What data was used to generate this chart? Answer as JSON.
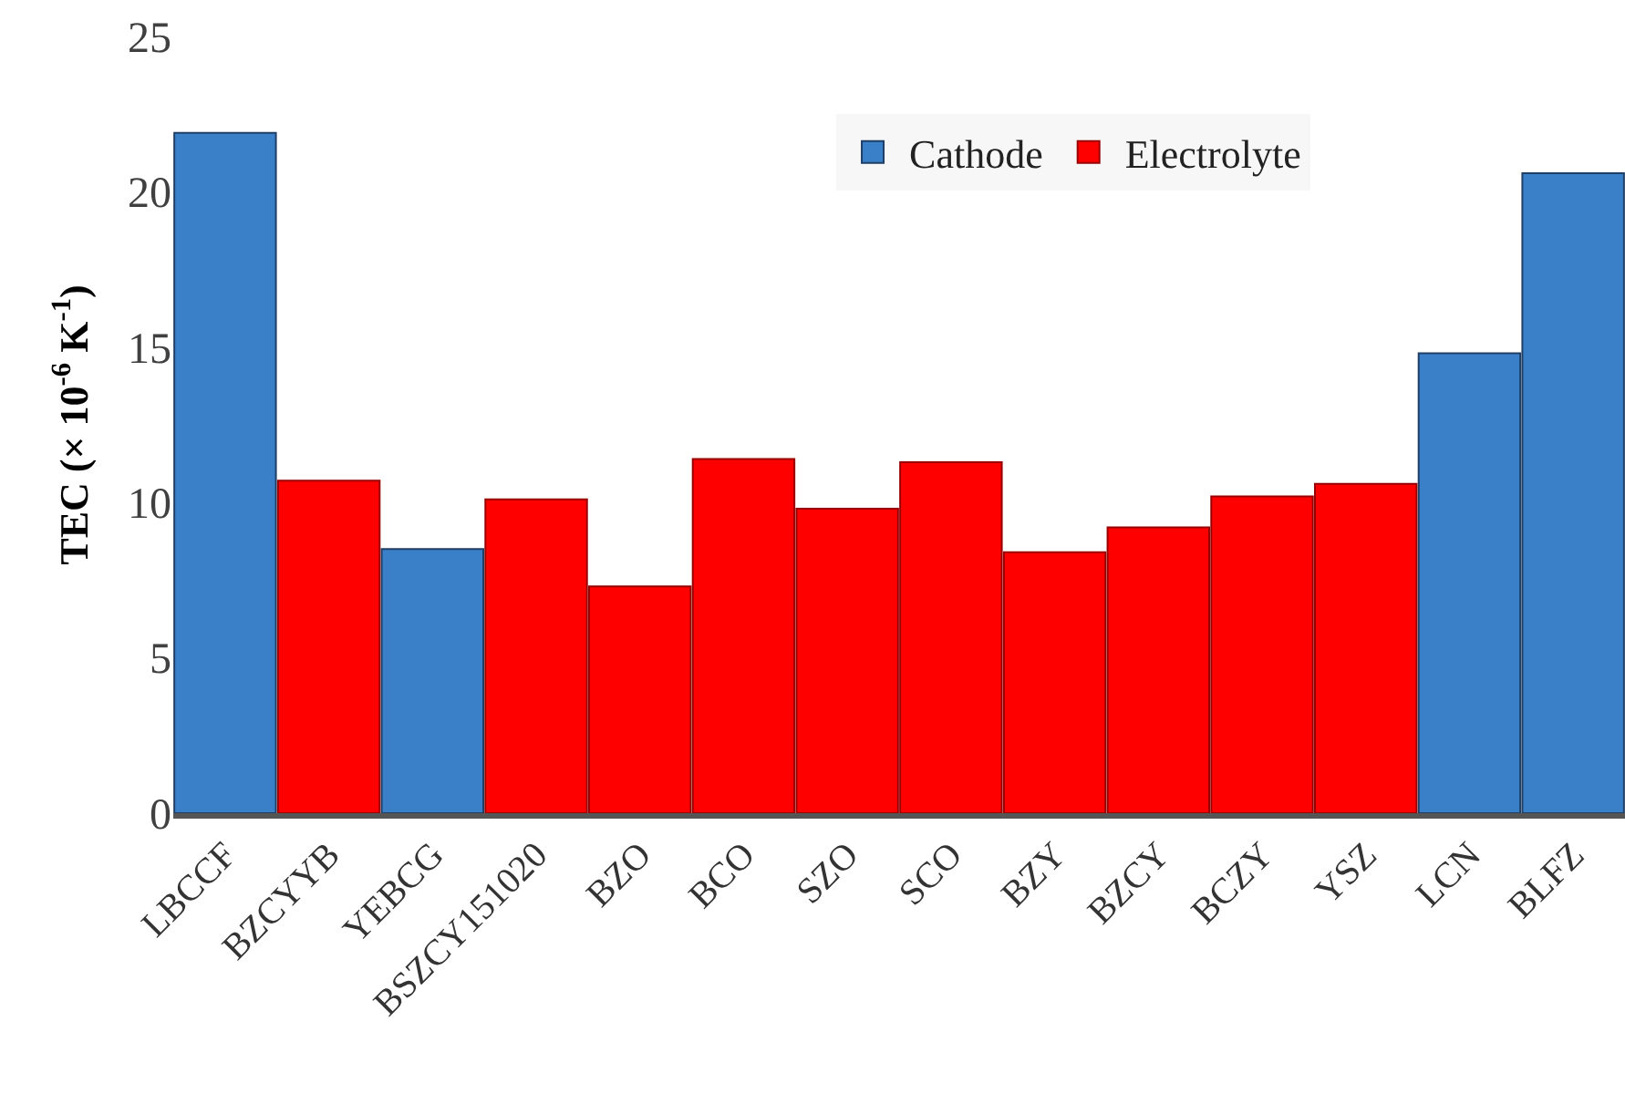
{
  "chart_data": {
    "type": "bar",
    "ylabel": "TEC (× 10$^{-6}$ K$^{-1}$)",
    "categories": [
      "LBCCF",
      "BZCYYB",
      "YEBCG",
      "BSZCY151020",
      "BZO",
      "BCO",
      "SZO",
      "SCO",
      "BZY",
      "BZCY",
      "BCZY",
      "YSZ",
      "LCN",
      "BLFZ"
    ],
    "series": [
      {
        "name": "Cathode",
        "color": "#3a80c9",
        "values": [
          21.9,
          null,
          8.5,
          null,
          null,
          null,
          null,
          null,
          null,
          null,
          null,
          null,
          14.8,
          20.6
        ]
      },
      {
        "name": "Electrolyte",
        "color": "#ff0000",
        "values": [
          null,
          10.7,
          null,
          10.1,
          7.3,
          11.4,
          9.8,
          11.3,
          8.4,
          9.2,
          10.2,
          10.6,
          null,
          null
        ]
      }
    ],
    "ylim": [
      0,
      25
    ],
    "yticks": [
      0,
      5,
      10,
      15,
      20,
      25
    ],
    "legend": "top"
  }
}
